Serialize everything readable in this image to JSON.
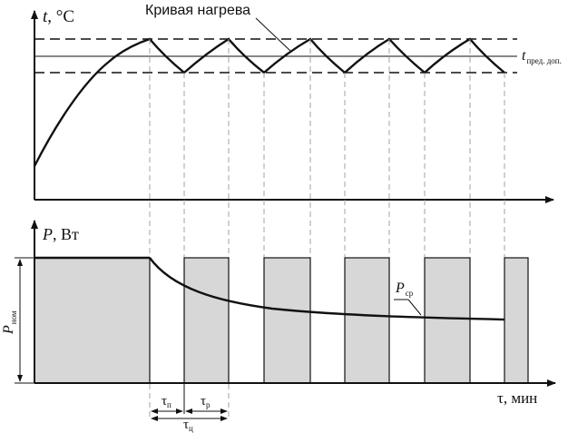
{
  "top": {
    "ylabel_var": "t",
    "ylabel_unit": ", °C",
    "curve_label": "Кривая нагрева",
    "limit_var": "t",
    "limit_sub": "пред. доп."
  },
  "bottom": {
    "ylabel_var": "P",
    "ylabel_unit": ", Вт",
    "pnom_var": "P",
    "pnom_sub": "ном",
    "pavg_var": "P",
    "pavg_sub": "ср",
    "xlabel": "τ, мин",
    "tau_p": "τ",
    "tau_p_sub": "п",
    "tau_r": "τ",
    "tau_r_sub": "р",
    "tau_c": "τ",
    "tau_c_sub": "ц"
  }
}
